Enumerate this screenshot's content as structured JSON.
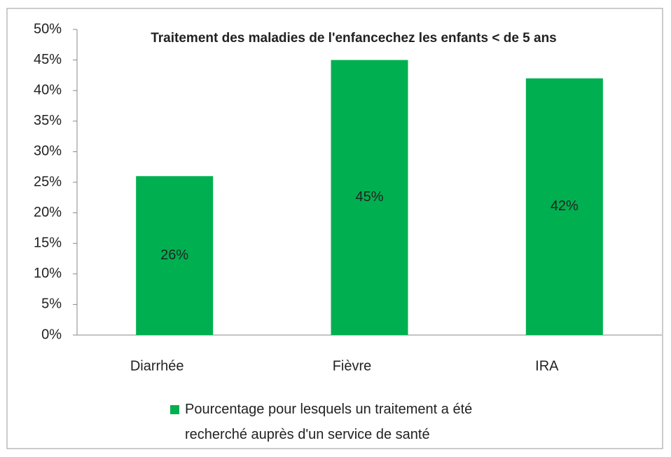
{
  "chart_data": {
    "type": "bar",
    "title": "Traitement des maladies de l'enfancechez les enfants <  de 5 ans",
    "categories": [
      "Diarrhée",
      "Fièvre",
      "IRA"
    ],
    "series": [
      {
        "name": "Pourcentage pour lesquels un traitement a été recherché auprès d'un service de santé",
        "color": "#00b050",
        "values": [
          26,
          45,
          42
        ],
        "value_labels": [
          "26%",
          "45%",
          "42%"
        ]
      }
    ],
    "ylim": [
      0,
      50
    ],
    "yticks": [
      {
        "value": 0,
        "label": "0%"
      },
      {
        "value": 5,
        "label": "5%"
      },
      {
        "value": 10,
        "label": "10%"
      },
      {
        "value": 15,
        "label": "15%"
      },
      {
        "value": 20,
        "label": "20%"
      },
      {
        "value": 25,
        "label": "25%"
      },
      {
        "value": 30,
        "label": "30%"
      },
      {
        "value": 35,
        "label": "35%"
      },
      {
        "value": 40,
        "label": "40%"
      },
      {
        "value": 45,
        "label": "45%"
      },
      {
        "value": 50,
        "label": "50%"
      }
    ],
    "grid": false,
    "legend": "bottom"
  }
}
